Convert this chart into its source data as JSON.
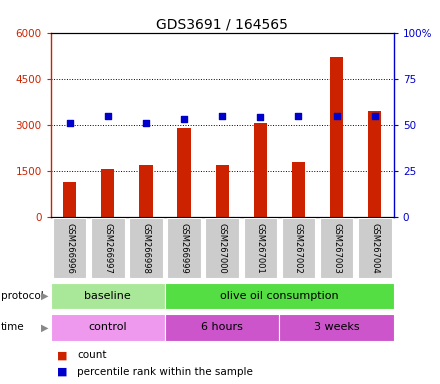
{
  "title": "GDS3691 / 164565",
  "samples": [
    "GSM266996",
    "GSM266997",
    "GSM266998",
    "GSM266999",
    "GSM267000",
    "GSM267001",
    "GSM267002",
    "GSM267003",
    "GSM267004"
  ],
  "counts": [
    1150,
    1550,
    1700,
    2900,
    1700,
    3050,
    1800,
    5200,
    3450
  ],
  "percentile_ranks": [
    51,
    55,
    51,
    53,
    55,
    54,
    55,
    55,
    55
  ],
  "ylim_left": [
    0,
    6000
  ],
  "ylim_right": [
    0,
    100
  ],
  "yticks_left": [
    0,
    1500,
    3000,
    4500,
    6000
  ],
  "yticks_right": [
    0,
    25,
    50,
    75,
    100
  ],
  "ytick_labels_left": [
    "0",
    "1500",
    "3000",
    "4500",
    "6000"
  ],
  "ytick_labels_right": [
    "0",
    "25",
    "50",
    "75",
    "100%"
  ],
  "bar_color": "#cc2200",
  "dot_color": "#0000cc",
  "protocol_labels": [
    {
      "text": "baseline",
      "start": 0,
      "end": 3,
      "color": "#aae899"
    },
    {
      "text": "olive oil consumption",
      "start": 3,
      "end": 9,
      "color": "#55dd44"
    }
  ],
  "time_labels": [
    {
      "text": "control",
      "start": 0,
      "end": 3,
      "color": "#ee99ee"
    },
    {
      "text": "6 hours",
      "start": 3,
      "end": 6,
      "color": "#cc55cc"
    },
    {
      "text": "3 weeks",
      "start": 6,
      "end": 9,
      "color": "#cc55cc"
    }
  ],
  "legend_count_color": "#cc2200",
  "legend_pct_color": "#0000cc"
}
